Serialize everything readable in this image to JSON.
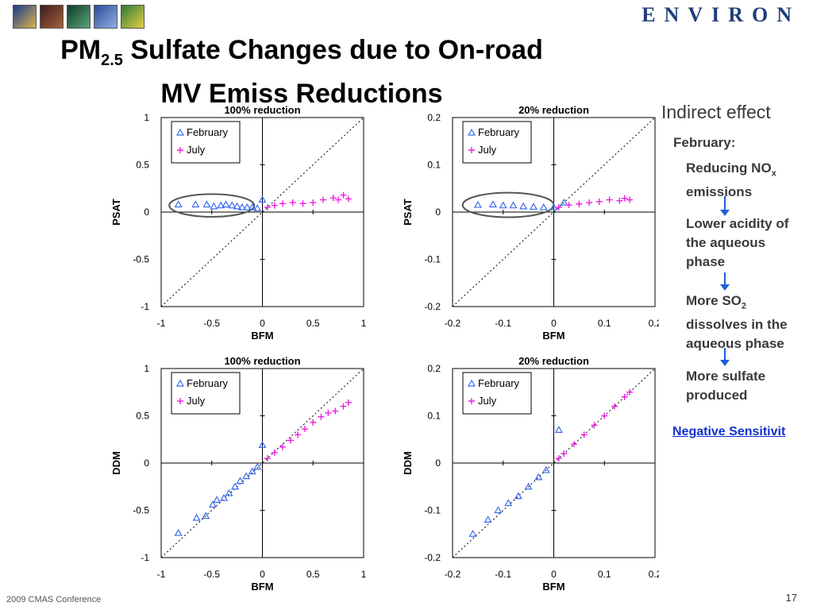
{
  "slide": {
    "title_main": "PM",
    "title_sub": "2.5",
    "title_rest": " Sulfate Changes due to On-road MV Emiss Reductions",
    "logo_text": "ENVIRON",
    "footer": "2009 CMAS Conference",
    "page_number": "17"
  },
  "sidebar": {
    "heading": "Indirect effect",
    "subheading": "February:",
    "step1_a": "Reducing NO",
    "step1_sub": "x",
    "step1_b": "emissions",
    "step2": "Lower acidity of the aqueous phase",
    "step3_a": "More SO",
    "step3_sub": "2",
    "step3_b": "dissolves in the aqueous phase",
    "step4": "More sulfate produced",
    "link": "Negative Sensitivit"
  },
  "colors": {
    "february": "#3b6cf0",
    "july": "#ee1ee0",
    "ellipse": "#555555"
  },
  "chart_data": [
    {
      "type": "scatter",
      "title": "100% reduction",
      "xlabel": "BFM",
      "ylabel": "PSAT",
      "xlim": [
        -1,
        1
      ],
      "ylim": [
        -1,
        1
      ],
      "xticks": [
        "-1",
        "-0.5",
        "0",
        "0.5",
        "1"
      ],
      "yticks": [
        "1",
        "0.5",
        "0",
        "-0.5",
        "-1"
      ],
      "diagonal": true,
      "grid": false,
      "legend": "top-left",
      "series": [
        {
          "name": "February",
          "marker": "triangle",
          "points": [
            [
              -0.83,
              0.08
            ],
            [
              -0.66,
              0.08
            ],
            [
              -0.55,
              0.08
            ],
            [
              -0.48,
              0.06
            ],
            [
              -0.41,
              0.07
            ],
            [
              -0.36,
              0.08
            ],
            [
              -0.3,
              0.07
            ],
            [
              -0.25,
              0.06
            ],
            [
              -0.2,
              0.05
            ],
            [
              -0.15,
              0.05
            ],
            [
              -0.1,
              0.05
            ],
            [
              -0.05,
              0.04
            ],
            [
              0,
              0.13
            ]
          ]
        },
        {
          "name": "July",
          "marker": "plus",
          "points": [
            [
              0.05,
              0.05
            ],
            [
              0.12,
              0.07
            ],
            [
              0.2,
              0.09
            ],
            [
              0.3,
              0.1
            ],
            [
              0.4,
              0.09
            ],
            [
              0.5,
              0.1
            ],
            [
              0.6,
              0.13
            ],
            [
              0.7,
              0.15
            ],
            [
              0.75,
              0.13
            ],
            [
              0.8,
              0.18
            ],
            [
              0.85,
              0.14
            ]
          ]
        }
      ],
      "ellipse": {
        "cx": -0.5,
        "cy": 0.07,
        "rx": 0.42,
        "ry": 0.12
      }
    },
    {
      "type": "scatter",
      "title": "20% reduction",
      "xlabel": "BFM",
      "ylabel": "PSAT",
      "xlim": [
        -0.2,
        0.2
      ],
      "ylim": [
        -0.2,
        0.2
      ],
      "xticks": [
        "-0.2",
        "-0.1",
        "0",
        "0.1",
        "0.2"
      ],
      "yticks": [
        "0.2",
        "0.1",
        "0",
        "-0.1",
        "-0.2"
      ],
      "diagonal": true,
      "grid": false,
      "legend": "top-left",
      "series": [
        {
          "name": "February",
          "marker": "triangle",
          "points": [
            [
              -0.15,
              0.015
            ],
            [
              -0.12,
              0.016
            ],
            [
              -0.1,
              0.014
            ],
            [
              -0.08,
              0.014
            ],
            [
              -0.06,
              0.012
            ],
            [
              -0.04,
              0.011
            ],
            [
              -0.02,
              0.01
            ],
            [
              0,
              0.01
            ],
            [
              0.02,
              0.02
            ]
          ]
        },
        {
          "name": "July",
          "marker": "plus",
          "points": [
            [
              0.01,
              0.01
            ],
            [
              0.03,
              0.015
            ],
            [
              0.05,
              0.017
            ],
            [
              0.07,
              0.02
            ],
            [
              0.09,
              0.022
            ],
            [
              0.11,
              0.026
            ],
            [
              0.13,
              0.024
            ],
            [
              0.14,
              0.029
            ],
            [
              0.15,
              0.026
            ]
          ]
        }
      ],
      "ellipse": {
        "cx": -0.09,
        "cy": 0.015,
        "rx": 0.09,
        "ry": 0.026
      }
    },
    {
      "type": "scatter",
      "title": "100% reduction",
      "xlabel": "BFM",
      "ylabel": "DDM",
      "xlim": [
        -1,
        1
      ],
      "ylim": [
        -1,
        1
      ],
      "xticks": [
        "-1",
        "-0.5",
        "0",
        "0.5",
        "1"
      ],
      "yticks": [
        "1",
        "0.5",
        "0",
        "-0.5",
        "-1"
      ],
      "diagonal": true,
      "grid": false,
      "legend": "top-left",
      "series": [
        {
          "name": "February",
          "marker": "triangle",
          "points": [
            [
              -0.83,
              -0.74
            ],
            [
              -0.65,
              -0.58
            ],
            [
              -0.56,
              -0.56
            ],
            [
              -0.49,
              -0.44
            ],
            [
              -0.45,
              -0.39
            ],
            [
              -0.38,
              -0.37
            ],
            [
              -0.33,
              -0.32
            ],
            [
              -0.27,
              -0.25
            ],
            [
              -0.22,
              -0.19
            ],
            [
              -0.16,
              -0.14
            ],
            [
              -0.1,
              -0.09
            ],
            [
              -0.05,
              -0.04
            ],
            [
              0,
              0.19
            ]
          ]
        },
        {
          "name": "July",
          "marker": "plus",
          "points": [
            [
              0.05,
              0.05
            ],
            [
              0.12,
              0.11
            ],
            [
              0.2,
              0.17
            ],
            [
              0.28,
              0.24
            ],
            [
              0.35,
              0.3
            ],
            [
              0.42,
              0.36
            ],
            [
              0.5,
              0.43
            ],
            [
              0.58,
              0.49
            ],
            [
              0.65,
              0.53
            ],
            [
              0.72,
              0.55
            ],
            [
              0.8,
              0.6
            ],
            [
              0.85,
              0.64
            ]
          ]
        }
      ]
    },
    {
      "type": "scatter",
      "title": "20% reduction",
      "xlabel": "BFM",
      "ylabel": "DDM",
      "xlim": [
        -0.2,
        0.2
      ],
      "ylim": [
        -0.2,
        0.2
      ],
      "xticks": [
        "-0.2",
        "-0.1",
        "0",
        "0.1",
        "0.2"
      ],
      "yticks": [
        "0.2",
        "0.1",
        "0",
        "-0.1",
        "-0.2"
      ],
      "diagonal": true,
      "grid": false,
      "legend": "top-left",
      "series": [
        {
          "name": "February",
          "marker": "triangle",
          "points": [
            [
              -0.16,
              -0.15
            ],
            [
              -0.13,
              -0.12
            ],
            [
              -0.11,
              -0.1
            ],
            [
              -0.09,
              -0.085
            ],
            [
              -0.07,
              -0.07
            ],
            [
              -0.05,
              -0.05
            ],
            [
              -0.03,
              -0.03
            ],
            [
              -0.015,
              -0.015
            ],
            [
              0.01,
              0.07
            ]
          ]
        },
        {
          "name": "July",
          "marker": "plus",
          "points": [
            [
              0.01,
              0.01
            ],
            [
              0.02,
              0.02
            ],
            [
              0.04,
              0.04
            ],
            [
              0.06,
              0.06
            ],
            [
              0.08,
              0.08
            ],
            [
              0.1,
              0.1
            ],
            [
              0.12,
              0.12
            ],
            [
              0.14,
              0.14
            ],
            [
              0.15,
              0.15
            ]
          ]
        }
      ]
    }
  ]
}
